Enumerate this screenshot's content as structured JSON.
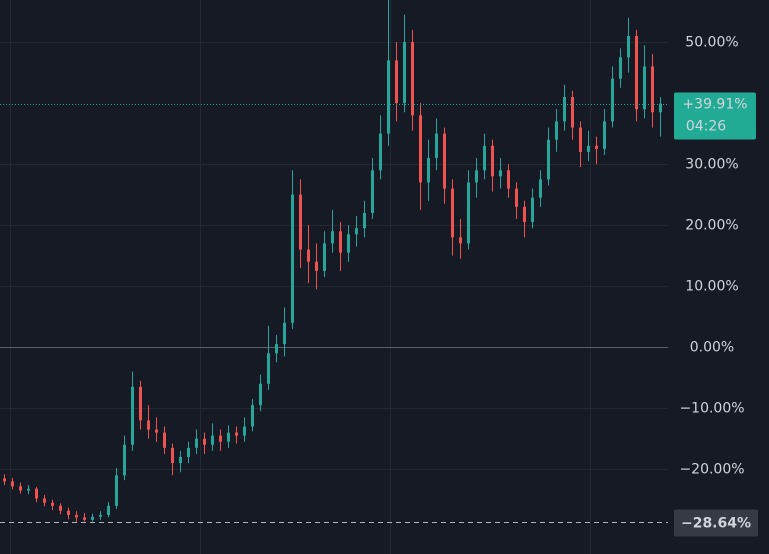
{
  "chart_data": {
    "type": "candlestick",
    "up_color": "#26a69a",
    "down_color": "#ef5350",
    "ylim": [
      -33.9,
      56.9
    ],
    "yticks": [
      {
        "value": 50,
        "label": "50.00%"
      },
      {
        "value": 30,
        "label": "30.00%"
      },
      {
        "value": 20,
        "label": "20.00%"
      },
      {
        "value": 10,
        "label": "10.00%"
      },
      {
        "value": 0,
        "label": "0.00%"
      },
      {
        "value": -10,
        "label": "−10.00%"
      },
      {
        "value": -20,
        "label": "−20.00%"
      }
    ],
    "grid": true,
    "last_price": {
      "value": 39.91,
      "label": "+39.91%"
    },
    "countdown": "04:26",
    "low_line": {
      "value": -28.64,
      "label": "−28.64%"
    },
    "candles": [
      [
        -21.5,
        -20.8,
        -22.6,
        -22.0
      ],
      [
        -22.0,
        -21.4,
        -23.3,
        -22.8
      ],
      [
        -22.8,
        -22.2,
        -24.0,
        -23.5
      ],
      [
        -23.5,
        -22.6,
        -24.1,
        -23.2
      ],
      [
        -23.2,
        -22.9,
        -25.4,
        -24.8
      ],
      [
        -24.8,
        -24.2,
        -26.1,
        -25.5
      ],
      [
        -25.5,
        -25.0,
        -26.7,
        -26.0
      ],
      [
        -26.0,
        -25.6,
        -27.4,
        -26.8
      ],
      [
        -26.8,
        -26.3,
        -28.2,
        -27.5
      ],
      [
        -27.5,
        -26.9,
        -28.64,
        -27.9
      ],
      [
        -27.9,
        -27.2,
        -28.6,
        -28.3
      ],
      [
        -28.3,
        -27.3,
        -28.6,
        -27.8
      ],
      [
        -27.8,
        -26.9,
        -28.3,
        -27.5
      ],
      [
        -27.5,
        -25.4,
        -27.9,
        -26.0
      ],
      [
        -26.0,
        -19.8,
        -26.5,
        -21.0
      ],
      [
        -21.0,
        -14.5,
        -21.8,
        -16.0
      ],
      [
        -16.0,
        -4.0,
        -17.0,
        -6.5
      ],
      [
        -6.5,
        -5.5,
        -13.5,
        -12.0
      ],
      [
        -12.0,
        -9.5,
        -15.0,
        -13.5
      ],
      [
        -13.5,
        -11.5,
        -15.5,
        -14.0
      ],
      [
        -14.0,
        -13.0,
        -17.5,
        -16.5
      ],
      [
        -16.5,
        -15.8,
        -21.0,
        -19.0
      ],
      [
        -19.0,
        -17.0,
        -20.5,
        -18.0
      ],
      [
        -18.0,
        -15.5,
        -19.0,
        -16.5
      ],
      [
        -16.5,
        -13.5,
        -17.5,
        -15.0
      ],
      [
        -15.0,
        -14.0,
        -17.5,
        -16.0
      ],
      [
        -16.0,
        -12.5,
        -17.0,
        -14.5
      ],
      [
        -14.5,
        -13.5,
        -17.0,
        -15.5
      ],
      [
        -15.5,
        -12.8,
        -16.5,
        -14.0
      ],
      [
        -14.0,
        -13.0,
        -15.8,
        -14.5
      ],
      [
        -14.5,
        -11.5,
        -15.5,
        -13.0
      ],
      [
        -13.0,
        -8.5,
        -13.8,
        -9.5
      ],
      [
        -9.5,
        -4.5,
        -10.5,
        -6.0
      ],
      [
        -6.0,
        3.5,
        -7.0,
        -1.0
      ],
      [
        -1.0,
        2.0,
        -2.5,
        0.5
      ],
      [
        0.5,
        6.5,
        -1.5,
        4.0
      ],
      [
        4.0,
        29.0,
        3.0,
        25.0
      ],
      [
        25.0,
        27.5,
        13.0,
        16.0
      ],
      [
        16.0,
        20.0,
        10.5,
        14.0
      ],
      [
        14.0,
        17.0,
        9.5,
        12.5
      ],
      [
        12.5,
        19.0,
        11.5,
        17.0
      ],
      [
        17.0,
        22.5,
        15.5,
        19.0
      ],
      [
        19.0,
        20.5,
        12.5,
        15.5
      ],
      [
        15.5,
        20.0,
        14.0,
        18.5
      ],
      [
        18.5,
        21.5,
        16.5,
        19.5
      ],
      [
        19.5,
        24.0,
        18.0,
        22.0
      ],
      [
        22.0,
        31.0,
        21.0,
        29.0
      ],
      [
        29.0,
        38.0,
        27.5,
        35.0
      ],
      [
        35.0,
        57.0,
        33.0,
        47.0
      ],
      [
        47.0,
        50.0,
        37.0,
        40.0
      ],
      [
        40.0,
        54.5,
        38.5,
        50.0
      ],
      [
        50.0,
        52.0,
        35.5,
        38.0
      ],
      [
        38.0,
        40.0,
        22.5,
        27.0
      ],
      [
        27.0,
        34.0,
        24.0,
        31.0
      ],
      [
        31.0,
        37.5,
        29.0,
        35.0
      ],
      [
        35.0,
        36.0,
        23.5,
        26.0
      ],
      [
        26.0,
        27.5,
        15.0,
        18.0
      ],
      [
        18.0,
        21.0,
        14.5,
        17.0
      ],
      [
        17.0,
        29.0,
        16.0,
        27.0
      ],
      [
        27.0,
        31.0,
        24.5,
        29.0
      ],
      [
        29.0,
        35.0,
        27.5,
        33.0
      ],
      [
        33.0,
        34.0,
        25.5,
        28.0
      ],
      [
        28.0,
        31.0,
        26.0,
        29.0
      ],
      [
        29.0,
        30.0,
        24.5,
        26.0
      ],
      [
        26.0,
        27.0,
        21.0,
        23.0
      ],
      [
        23.0,
        24.0,
        18.0,
        20.5
      ],
      [
        20.5,
        26.0,
        19.5,
        24.5
      ],
      [
        24.5,
        29.0,
        23.0,
        27.5
      ],
      [
        27.5,
        36.0,
        26.5,
        34.0
      ],
      [
        34.0,
        39.0,
        32.0,
        37.0
      ],
      [
        37.0,
        43.0,
        35.5,
        41.0
      ],
      [
        41.0,
        42.0,
        34.0,
        36.0
      ],
      [
        36.0,
        37.0,
        29.5,
        32.0
      ],
      [
        32.0,
        35.5,
        30.5,
        33.0
      ],
      [
        33.0,
        34.5,
        30.0,
        32.5
      ],
      [
        32.5,
        39.0,
        31.5,
        37.0
      ],
      [
        37.0,
        46.0,
        36.0,
        44.0
      ],
      [
        44.0,
        49.0,
        42.5,
        47.5
      ],
      [
        47.5,
        54.0,
        45.0,
        51.0
      ],
      [
        51.0,
        52.0,
        37.0,
        39.0
      ],
      [
        39.0,
        49.5,
        37.5,
        46.0
      ],
      [
        46.0,
        48.0,
        36.0,
        38.5
      ],
      [
        38.5,
        41.0,
        34.5,
        39.91
      ]
    ]
  }
}
